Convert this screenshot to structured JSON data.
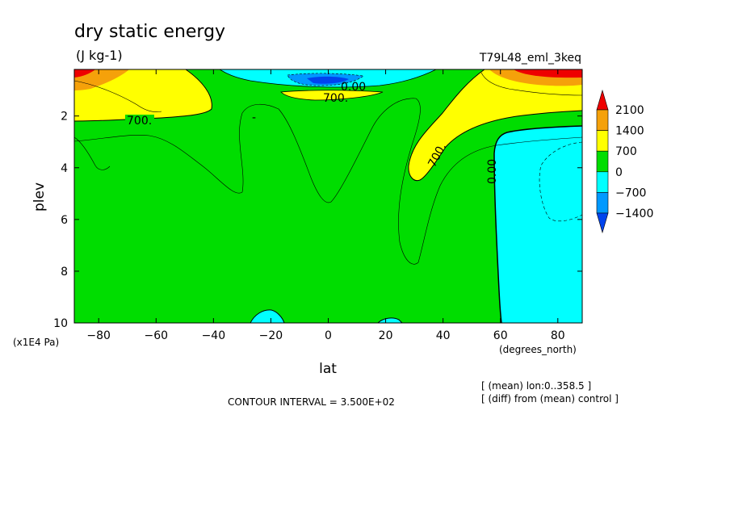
{
  "chart_data": {
    "type": "contour",
    "title": "dry static energy",
    "units": "(J kg-1)",
    "run_label": "T79L48_eml_3keq",
    "xlabel": "lat",
    "x_units": "(degrees_north)",
    "ylabel": "plev",
    "y_units": "(x1E4 Pa)",
    "x_ticks": [
      -80,
      -60,
      -40,
      -20,
      0,
      20,
      40,
      60,
      80
    ],
    "y_ticks": [
      2,
      4,
      6,
      8,
      10
    ],
    "xlim": [
      -88.5,
      88.5
    ],
    "ylim": [
      10,
      0.2
    ],
    "y_inverted": true,
    "contour_interval": "CONTOUR INTERVAL = 3.500E+02",
    "footnotes": [
      "[ (mean) lon:0..358.5 ]",
      "[ (diff) from (mean) control ]"
    ],
    "colorbar": {
      "labels": [
        "2100",
        "1400",
        "700",
        "0",
        "-700",
        "-1400"
      ],
      "colors": [
        "#ee0000",
        "#f5a10a",
        "#ffff00",
        "#00dd00",
        "#00ffff",
        "#0099ff",
        "#0044ee"
      ]
    },
    "contour_labels": [
      "700.",
      "700.",
      "700.",
      "0.00",
      "0.00",
      "-"
    ]
  }
}
